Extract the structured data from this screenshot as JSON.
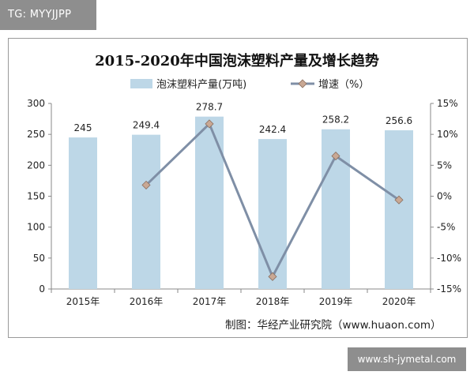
{
  "watermark_left": "TG: MYYJJPP",
  "watermark_right": "www.sh-jymetal.com",
  "source": "制图：华经产业研究院（www.huaon.com）",
  "colors": {
    "bar": "#bdd7e7",
    "line": "#7f8fa6",
    "marker": "#c9a894",
    "axis": "#888888"
  },
  "chart_data": {
    "type": "bar",
    "title": "2015-2020年中国泡沫塑料产量及增长趋势",
    "categories": [
      "2015年",
      "2016年",
      "2017年",
      "2018年",
      "2019年",
      "2020年"
    ],
    "series": [
      {
        "name": "泡沫塑料产量(万吨)",
        "type": "bar",
        "axis": "left",
        "values": [
          245,
          249.4,
          278.7,
          242.4,
          258.2,
          256.6
        ],
        "labels": [
          "245",
          "249.4",
          "278.7",
          "242.4",
          "258.2",
          "256.6"
        ]
      },
      {
        "name": "增速（%）",
        "type": "line",
        "axis": "right",
        "values": [
          null,
          1.8,
          11.7,
          -13.0,
          6.5,
          -0.6
        ]
      }
    ],
    "y_left": {
      "min": 0,
      "max": 300,
      "ticks": [
        "0",
        "50",
        "100",
        "150",
        "200",
        "250",
        "300"
      ]
    },
    "y_right": {
      "min": -15,
      "max": 15,
      "ticks": [
        "-15%",
        "-10%",
        "-5%",
        "0%",
        "5%",
        "10%",
        "15%"
      ]
    },
    "grid": false,
    "legend_position": "top"
  }
}
